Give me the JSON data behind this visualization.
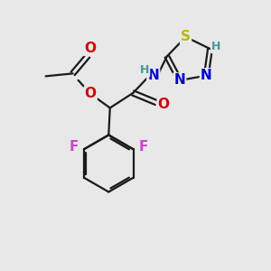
{
  "bg_color": "#e8e8e8",
  "bond_color": "#1a1a1a",
  "S_color": "#b8b800",
  "N_color": "#0000cc",
  "O_color": "#cc0000",
  "F_color": "#cc44cc",
  "H_color": "#449999",
  "font_size_atom": 11,
  "line_width": 1.6,
  "figsize": [
    3.0,
    3.0
  ],
  "dpi": 100,
  "xlim": [
    0,
    10
  ],
  "ylim": [
    0,
    10
  ]
}
